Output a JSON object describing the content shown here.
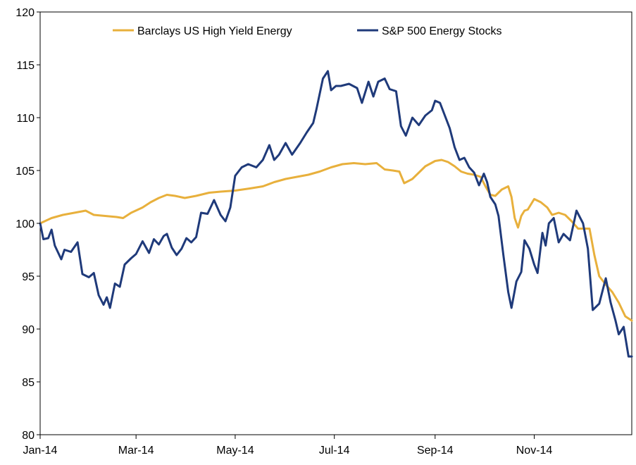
{
  "chart_data": {
    "type": "line",
    "title": "",
    "xlabel": "",
    "ylabel": "",
    "ylim": [
      80,
      120
    ],
    "yticks": [
      80,
      85,
      90,
      95,
      100,
      105,
      110,
      115,
      120
    ],
    "xlim": [
      "2014-01-01",
      "2014-12-31"
    ],
    "xticks": [
      {
        "date": "2014-01-01",
        "label": "Jan-14"
      },
      {
        "date": "2014-03-01",
        "label": "Mar-14"
      },
      {
        "date": "2014-05-01",
        "label": "May-14"
      },
      {
        "date": "2014-07-01",
        "label": "Jul-14"
      },
      {
        "date": "2014-09-01",
        "label": "Sep-14"
      },
      {
        "date": "2014-11-01",
        "label": "Nov-14"
      }
    ],
    "grid": false,
    "legend_position": "top",
    "series": [
      {
        "name": "Barclays US High Yield Energy",
        "color": "#E8B03C",
        "points": [
          [
            "2014-01-01",
            100.0
          ],
          [
            "2014-01-08",
            100.5
          ],
          [
            "2014-01-15",
            100.8
          ],
          [
            "2014-01-22",
            101.0
          ],
          [
            "2014-01-29",
            101.2
          ],
          [
            "2014-02-03",
            100.8
          ],
          [
            "2014-02-10",
            100.7
          ],
          [
            "2014-02-17",
            100.6
          ],
          [
            "2014-02-21",
            100.5
          ],
          [
            "2014-02-26",
            101.0
          ],
          [
            "2014-03-05",
            101.5
          ],
          [
            "2014-03-10",
            102.0
          ],
          [
            "2014-03-15",
            102.4
          ],
          [
            "2014-03-20",
            102.7
          ],
          [
            "2014-03-25",
            102.6
          ],
          [
            "2014-03-31",
            102.4
          ],
          [
            "2014-04-07",
            102.6
          ],
          [
            "2014-04-15",
            102.9
          ],
          [
            "2014-04-22",
            103.0
          ],
          [
            "2014-05-01",
            103.1
          ],
          [
            "2014-05-10",
            103.3
          ],
          [
            "2014-05-18",
            103.5
          ],
          [
            "2014-05-25",
            103.9
          ],
          [
            "2014-06-01",
            104.2
          ],
          [
            "2014-06-08",
            104.4
          ],
          [
            "2014-06-15",
            104.6
          ],
          [
            "2014-06-22",
            104.9
          ],
          [
            "2014-06-29",
            105.3
          ],
          [
            "2014-07-06",
            105.6
          ],
          [
            "2014-07-13",
            105.7
          ],
          [
            "2014-07-20",
            105.6
          ],
          [
            "2014-07-27",
            105.7
          ],
          [
            "2014-08-01",
            105.1
          ],
          [
            "2014-08-06",
            105.0
          ],
          [
            "2014-08-10",
            104.9
          ],
          [
            "2014-08-13",
            103.8
          ],
          [
            "2014-08-18",
            104.2
          ],
          [
            "2014-08-22",
            104.8
          ],
          [
            "2014-08-26",
            105.4
          ],
          [
            "2014-09-01",
            105.9
          ],
          [
            "2014-09-05",
            106.0
          ],
          [
            "2014-09-09",
            105.8
          ],
          [
            "2014-09-13",
            105.4
          ],
          [
            "2014-09-17",
            104.9
          ],
          [
            "2014-09-21",
            104.7
          ],
          [
            "2014-09-25",
            104.6
          ],
          [
            "2014-09-29",
            104.4
          ],
          [
            "2014-10-02",
            103.5
          ],
          [
            "2014-10-05",
            102.7
          ],
          [
            "2014-10-08",
            102.6
          ],
          [
            "2014-10-12",
            103.2
          ],
          [
            "2014-10-16",
            103.5
          ],
          [
            "2014-10-18",
            102.5
          ],
          [
            "2014-10-20",
            100.5
          ],
          [
            "2014-10-22",
            99.6
          ],
          [
            "2014-10-24",
            100.7
          ],
          [
            "2014-10-26",
            101.2
          ],
          [
            "2014-10-28",
            101.3
          ],
          [
            "2014-11-01",
            102.3
          ],
          [
            "2014-11-05",
            102.0
          ],
          [
            "2014-11-09",
            101.5
          ],
          [
            "2014-11-12",
            100.8
          ],
          [
            "2014-11-16",
            101.0
          ],
          [
            "2014-11-20",
            100.8
          ],
          [
            "2014-11-24",
            100.2
          ],
          [
            "2014-11-28",
            99.5
          ],
          [
            "2014-12-05",
            99.5
          ],
          [
            "2014-12-08",
            97.0
          ],
          [
            "2014-12-11",
            95.0
          ],
          [
            "2014-12-15",
            94.2
          ],
          [
            "2014-12-19",
            93.5
          ],
          [
            "2014-12-23",
            92.5
          ],
          [
            "2014-12-27",
            91.2
          ],
          [
            "2014-12-31",
            90.8
          ]
        ]
      },
      {
        "name": "S&P 500 Energy Stocks",
        "color": "#1F3A7A",
        "points": [
          [
            "2014-01-01",
            100.0
          ],
          [
            "2014-01-03",
            98.5
          ],
          [
            "2014-01-06",
            98.6
          ],
          [
            "2014-01-08",
            99.4
          ],
          [
            "2014-01-10",
            97.9
          ],
          [
            "2014-01-14",
            96.6
          ],
          [
            "2014-01-16",
            97.5
          ],
          [
            "2014-01-20",
            97.3
          ],
          [
            "2014-01-24",
            98.2
          ],
          [
            "2014-01-27",
            95.2
          ],
          [
            "2014-01-31",
            94.9
          ],
          [
            "2014-02-03",
            95.3
          ],
          [
            "2014-02-06",
            93.2
          ],
          [
            "2014-02-09",
            92.3
          ],
          [
            "2014-02-11",
            93.0
          ],
          [
            "2014-02-13",
            92.0
          ],
          [
            "2014-02-16",
            94.3
          ],
          [
            "2014-02-19",
            94.0
          ],
          [
            "2014-02-22",
            96.1
          ],
          [
            "2014-02-26",
            96.7
          ],
          [
            "2014-03-01",
            97.1
          ],
          [
            "2014-03-05",
            98.3
          ],
          [
            "2014-03-09",
            97.2
          ],
          [
            "2014-03-12",
            98.5
          ],
          [
            "2014-03-15",
            98.0
          ],
          [
            "2014-03-18",
            98.8
          ],
          [
            "2014-03-20",
            99.0
          ],
          [
            "2014-03-23",
            97.7
          ],
          [
            "2014-03-26",
            97.0
          ],
          [
            "2014-03-29",
            97.6
          ],
          [
            "2014-04-01",
            98.6
          ],
          [
            "2014-04-04",
            98.2
          ],
          [
            "2014-04-07",
            98.7
          ],
          [
            "2014-04-10",
            101.0
          ],
          [
            "2014-04-14",
            100.9
          ],
          [
            "2014-04-18",
            102.2
          ],
          [
            "2014-04-22",
            100.8
          ],
          [
            "2014-04-25",
            100.2
          ],
          [
            "2014-04-28",
            101.5
          ],
          [
            "2014-05-01",
            104.5
          ],
          [
            "2014-05-05",
            105.3
          ],
          [
            "2014-05-09",
            105.6
          ],
          [
            "2014-05-14",
            105.3
          ],
          [
            "2014-05-18",
            106.0
          ],
          [
            "2014-05-22",
            107.4
          ],
          [
            "2014-05-25",
            106.0
          ],
          [
            "2014-05-28",
            106.5
          ],
          [
            "2014-06-01",
            107.6
          ],
          [
            "2014-06-05",
            106.5
          ],
          [
            "2014-06-10",
            107.6
          ],
          [
            "2014-06-14",
            108.6
          ],
          [
            "2014-06-18",
            109.5
          ],
          [
            "2014-06-20",
            110.8
          ],
          [
            "2014-06-24",
            113.7
          ],
          [
            "2014-06-27",
            114.4
          ],
          [
            "2014-06-29",
            112.6
          ],
          [
            "2014-07-02",
            113.0
          ],
          [
            "2014-07-05",
            113.0
          ],
          [
            "2014-07-10",
            113.2
          ],
          [
            "2014-07-15",
            112.8
          ],
          [
            "2014-07-18",
            111.4
          ],
          [
            "2014-07-22",
            113.4
          ],
          [
            "2014-07-25",
            112.0
          ],
          [
            "2014-07-28",
            113.4
          ],
          [
            "2014-08-01",
            113.7
          ],
          [
            "2014-08-04",
            112.7
          ],
          [
            "2014-08-08",
            112.5
          ],
          [
            "2014-08-11",
            109.2
          ],
          [
            "2014-08-14",
            108.3
          ],
          [
            "2014-08-18",
            110.0
          ],
          [
            "2014-08-22",
            109.3
          ],
          [
            "2014-08-26",
            110.2
          ],
          [
            "2014-08-30",
            110.7
          ],
          [
            "2014-09-01",
            111.6
          ],
          [
            "2014-09-04",
            111.4
          ],
          [
            "2014-09-07",
            110.2
          ],
          [
            "2014-09-10",
            109.0
          ],
          [
            "2014-09-13",
            107.2
          ],
          [
            "2014-09-16",
            106.0
          ],
          [
            "2014-09-19",
            106.2
          ],
          [
            "2014-09-22",
            105.3
          ],
          [
            "2014-09-25",
            104.8
          ],
          [
            "2014-09-28",
            103.6
          ],
          [
            "2014-10-01",
            104.7
          ],
          [
            "2014-10-03",
            103.9
          ],
          [
            "2014-10-05",
            102.5
          ],
          [
            "2014-10-08",
            101.8
          ],
          [
            "2014-10-10",
            100.7
          ],
          [
            "2014-10-13",
            97.0
          ],
          [
            "2014-10-16",
            93.5
          ],
          [
            "2014-10-18",
            92.0
          ],
          [
            "2014-10-21",
            94.5
          ],
          [
            "2014-10-24",
            95.4
          ],
          [
            "2014-10-26",
            98.4
          ],
          [
            "2014-10-29",
            97.6
          ],
          [
            "2014-11-01",
            96.1
          ],
          [
            "2014-11-03",
            95.3
          ],
          [
            "2014-11-06",
            99.1
          ],
          [
            "2014-11-08",
            97.9
          ],
          [
            "2014-11-10",
            100.0
          ],
          [
            "2014-11-13",
            100.5
          ],
          [
            "2014-11-16",
            98.2
          ],
          [
            "2014-11-19",
            99.0
          ],
          [
            "2014-11-23",
            98.4
          ],
          [
            "2014-11-27",
            101.2
          ],
          [
            "2014-12-01",
            100.0
          ],
          [
            "2014-12-04",
            97.6
          ],
          [
            "2014-12-07",
            91.8
          ],
          [
            "2014-12-11",
            92.4
          ],
          [
            "2014-12-15",
            94.8
          ],
          [
            "2014-12-18",
            92.5
          ],
          [
            "2014-12-21",
            90.8
          ],
          [
            "2014-12-23",
            89.5
          ],
          [
            "2014-12-26",
            90.2
          ],
          [
            "2014-12-29",
            87.4
          ],
          [
            "2014-12-31",
            87.4
          ]
        ]
      }
    ]
  }
}
